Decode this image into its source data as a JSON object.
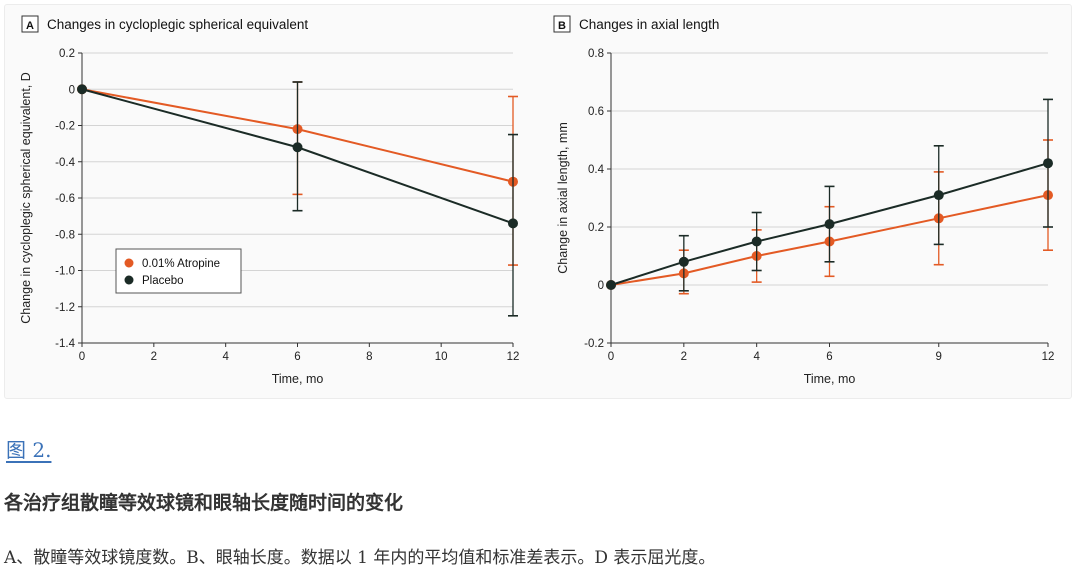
{
  "figure": {
    "label": "图 2.",
    "title": "各治疗组散瞳等效球镜和眼轴长度随时间的变化",
    "caption": "A、散瞳等效球镜度数。B、眼轴长度。数据以 1 年内的平均值和标准差表示。D 表示屈光度。"
  },
  "colors": {
    "atropine": "#e35a24",
    "placebo": "#1b2b26",
    "grid": "#d4d4d4"
  },
  "chart_data": [
    {
      "panel_letter": "A",
      "type": "line",
      "title": "Changes in cycloplegic spherical equivalent",
      "xlabel": "Time, mo",
      "ylabel": "Change in cycloplegic spherical equivalent, D",
      "xlim": [
        0,
        12
      ],
      "ylim": [
        -1.4,
        0.2
      ],
      "xticks": [
        0,
        2,
        4,
        6,
        8,
        10,
        12
      ],
      "xtick_labels": [
        "0",
        "2",
        "4",
        "6",
        "8",
        "10",
        "12"
      ],
      "yticks": [
        0.2,
        0,
        -0.2,
        -0.4,
        -0.6,
        -0.8,
        -1.0,
        -1.2,
        -1.4
      ],
      "ytick_labels": [
        "0.2",
        "0",
        "-0.2",
        "-0.4",
        "-0.6",
        "-0.8",
        "-1.0",
        "-1.2",
        "-1.4"
      ],
      "grid": true,
      "legend_position": "lower-left",
      "series": [
        {
          "name": "0.01% Atropine",
          "color": "#e35a24",
          "x": [
            0,
            6,
            12
          ],
          "y": [
            0,
            -0.22,
            -0.51
          ],
          "err_low": [
            null,
            -0.58,
            -0.97
          ],
          "err_high": [
            null,
            0.04,
            -0.04
          ]
        },
        {
          "name": "Placebo",
          "color": "#1b2b26",
          "x": [
            0,
            6,
            12
          ],
          "y": [
            0,
            -0.32,
            -0.74
          ],
          "err_low": [
            null,
            -0.67,
            -1.25
          ],
          "err_high": [
            null,
            0.04,
            -0.25
          ]
        }
      ]
    },
    {
      "panel_letter": "B",
      "type": "line",
      "title": "Changes in axial length",
      "xlabel": "Time, mo",
      "ylabel": "Change in axial length, mm",
      "xlim": [
        0,
        12
      ],
      "ylim": [
        -0.2,
        0.8
      ],
      "xticks": [
        0,
        2,
        4,
        6,
        9,
        12
      ],
      "xtick_labels": [
        "0",
        "2",
        "4",
        "6",
        "9",
        "12"
      ],
      "yticks": [
        0.8,
        0.6,
        0.4,
        0.2,
        0,
        -0.2
      ],
      "ytick_labels": [
        "0.8",
        "0.6",
        "0.4",
        "0.2",
        "0",
        "-0.2"
      ],
      "grid": true,
      "series": [
        {
          "name": "0.01% Atropine",
          "color": "#e35a24",
          "x": [
            0,
            2,
            4,
            6,
            9,
            12
          ],
          "y": [
            0,
            0.04,
            0.1,
            0.15,
            0.23,
            0.31
          ],
          "err_low": [
            null,
            -0.03,
            0.01,
            0.03,
            0.07,
            0.12
          ],
          "err_high": [
            null,
            0.12,
            0.19,
            0.27,
            0.39,
            0.5
          ]
        },
        {
          "name": "Placebo",
          "color": "#1b2b26",
          "x": [
            0,
            2,
            4,
            6,
            9,
            12
          ],
          "y": [
            0,
            0.08,
            0.15,
            0.21,
            0.31,
            0.42
          ],
          "err_low": [
            null,
            -0.02,
            0.05,
            0.08,
            0.14,
            0.2
          ],
          "err_high": [
            null,
            0.17,
            0.25,
            0.34,
            0.48,
            0.64
          ]
        }
      ]
    }
  ]
}
